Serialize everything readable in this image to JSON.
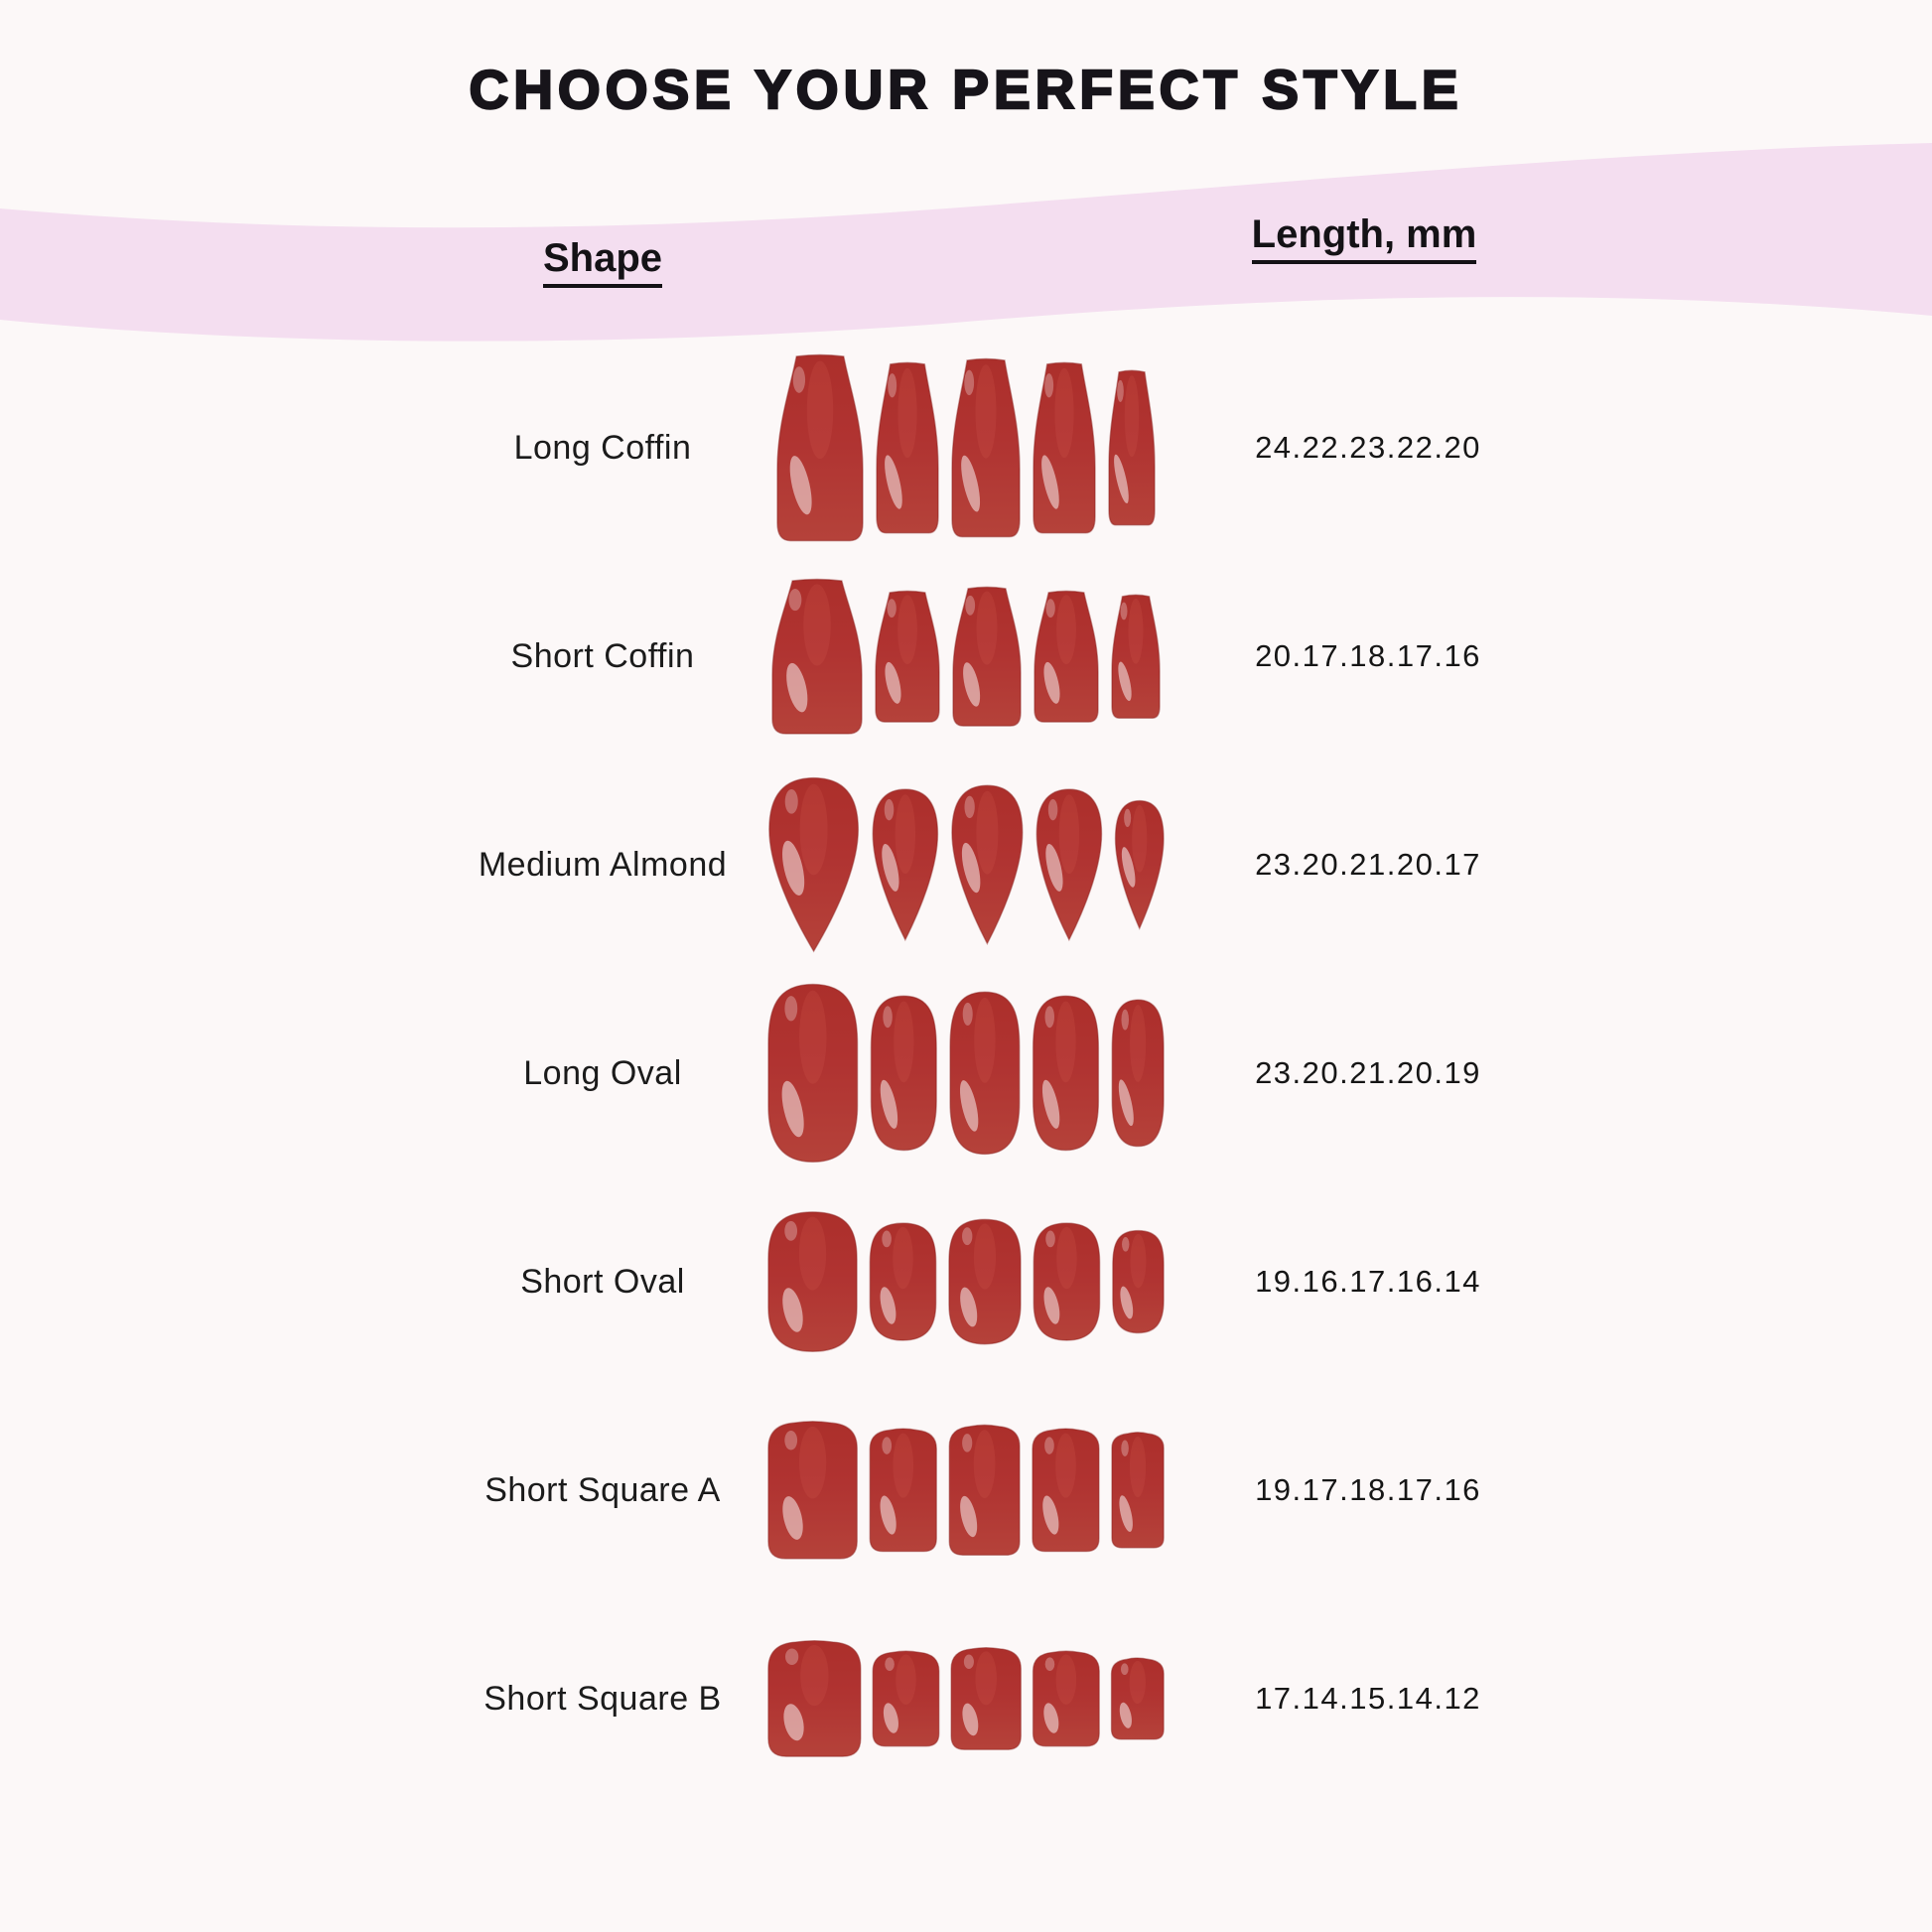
{
  "title": "CHOOSE YOUR PERFECT STYLE",
  "columns": {
    "shape": "Shape",
    "length": "Length, mm"
  },
  "rows": [
    {
      "shape": "Long Coffin",
      "lengths_display": "24.22.23.22.20",
      "lengths_mm": [
        24,
        22,
        23,
        22,
        20
      ],
      "nail_shape": "coffin"
    },
    {
      "shape": "Short Coffin",
      "lengths_display": "20.17.18.17.16",
      "lengths_mm": [
        20,
        17,
        18,
        17,
        16
      ],
      "nail_shape": "coffin"
    },
    {
      "shape": "Medium Almond",
      "lengths_display": "23.20.21.20.17",
      "lengths_mm": [
        23,
        20,
        21,
        20,
        17
      ],
      "nail_shape": "almond"
    },
    {
      "shape": "Long Oval",
      "lengths_display": "23.20.21.20.19",
      "lengths_mm": [
        23,
        20,
        21,
        20,
        19
      ],
      "nail_shape": "oval"
    },
    {
      "shape": "Short Oval",
      "lengths_display": "19.16.17.16.14",
      "lengths_mm": [
        19,
        16,
        17,
        16,
        14
      ],
      "nail_shape": "oval"
    },
    {
      "shape": "Short Square A",
      "lengths_display": "19.17.18.17.16",
      "lengths_mm": [
        19,
        17,
        18,
        17,
        16
      ],
      "nail_shape": "square"
    },
    {
      "shape": "Short Square B",
      "lengths_display": "17.14.15.14.12",
      "lengths_mm": [
        17,
        14,
        15,
        14,
        12
      ],
      "nail_shape": "square"
    }
  ],
  "colors": {
    "background": "#fcf8f8",
    "band": "#f4def0",
    "text": "#17141a",
    "nail_base": "#b03331",
    "nail_dark": "#9c2826",
    "nail_light": "#bb423a",
    "nail_stroke": "#8c2220"
  },
  "chart_data": {
    "type": "table",
    "title": "CHOOSE YOUR PERFECT STYLE",
    "columns": [
      "Shape",
      "Length, mm"
    ],
    "rows": [
      [
        "Long Coffin",
        "24.22.23.22.20"
      ],
      [
        "Short Coffin",
        "20.17.18.17.16"
      ],
      [
        "Medium Almond",
        "23.20.21.20.17"
      ],
      [
        "Long Oval",
        "23.20.21.20.19"
      ],
      [
        "Short Oval",
        "19.16.17.16.14"
      ],
      [
        "Short Square A",
        "19.17.18.17.16"
      ],
      [
        "Short Square B",
        "17.14.15.14.12"
      ]
    ]
  }
}
